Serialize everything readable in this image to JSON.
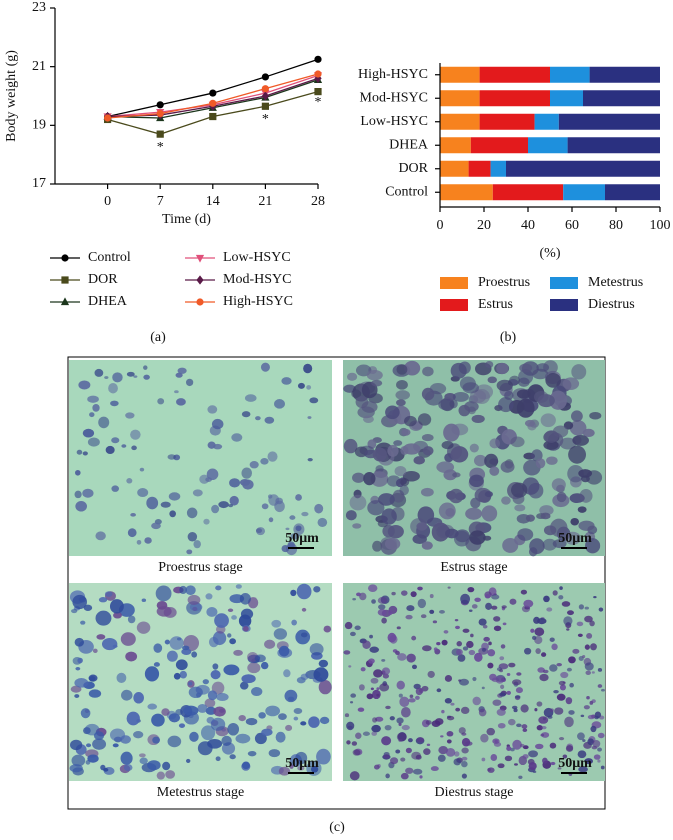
{
  "chart_data": [
    {
      "type": "line",
      "y_label": "Body weight (g)",
      "x_label": "Time (d)",
      "x": [
        0,
        7,
        14,
        21,
        28
      ],
      "xlim": [
        -7,
        28
      ],
      "xticks": [
        0,
        7,
        14,
        21,
        28
      ],
      "ylim": [
        17,
        23
      ],
      "yticks": [
        17,
        19,
        21,
        23
      ],
      "grid": false,
      "series": [
        {
          "name": "Control",
          "color": "#000000",
          "marker": "circle",
          "values": [
            19.3,
            19.7,
            20.1,
            20.65,
            21.25
          ]
        },
        {
          "name": "DOR",
          "color": "#4a4a1c",
          "marker": "square",
          "values": [
            19.2,
            18.7,
            19.3,
            19.65,
            20.15
          ]
        },
        {
          "name": "DHEA",
          "color": "#1c361c",
          "marker": "triangle",
          "values": [
            19.3,
            19.25,
            19.6,
            19.95,
            20.55
          ]
        },
        {
          "name": "Low-HSYC",
          "color": "#e0507a",
          "marker": "triangle-down",
          "values": [
            19.3,
            19.45,
            19.7,
            20.1,
            20.7
          ]
        },
        {
          "name": "Mod-HSYC",
          "color": "#5a1a48",
          "marker": "diamond",
          "values": [
            19.3,
            19.35,
            19.65,
            20.0,
            20.6
          ]
        },
        {
          "name": "High-HSYC",
          "color": "#f05a28",
          "marker": "circle",
          "values": [
            19.25,
            19.4,
            19.75,
            20.25,
            20.75
          ]
        }
      ],
      "annotations": [
        {
          "text": "*",
          "x": 7,
          "y": 18.33
        },
        {
          "text": "*",
          "x": 21,
          "y": 19.29
        },
        {
          "text": "*",
          "x": 28,
          "y": 19.87
        }
      ]
    },
    {
      "type": "stacked-barh",
      "x_label": "(%)",
      "categories": [
        "Control",
        "DOR",
        "DHEA",
        "Low-HSYC",
        "Mod-HSYC",
        "High-HSYC"
      ],
      "xlim": [
        0,
        100
      ],
      "xticks": [
        0,
        20,
        40,
        60,
        80,
        100
      ],
      "series": [
        {
          "name": "Proestrus",
          "color": "#f7821e",
          "values": [
            24,
            13,
            14,
            18,
            18,
            18
          ]
        },
        {
          "name": "Estrus",
          "color": "#e31a1c",
          "values": [
            32,
            10,
            26,
            25,
            32,
            32
          ]
        },
        {
          "name": "Metestrus",
          "color": "#1e90dd",
          "values": [
            19,
            7,
            18,
            11,
            15,
            18
          ]
        },
        {
          "name": "Diestrus",
          "color": "#2a3080",
          "values": [
            25,
            70,
            42,
            46,
            35,
            32
          ]
        }
      ]
    }
  ],
  "figure": {
    "panel_labels": [
      "(a)",
      "(b)",
      "(c)"
    ],
    "micrographs": [
      {
        "caption": "Proestrus stage",
        "scale_bar": "50μm"
      },
      {
        "caption": "Estrus stage",
        "scale_bar": "50μm"
      },
      {
        "caption": "Metestrus stage",
        "scale_bar": "50μm"
      },
      {
        "caption": "Diestrus stage",
        "scale_bar": "50μm"
      }
    ]
  }
}
